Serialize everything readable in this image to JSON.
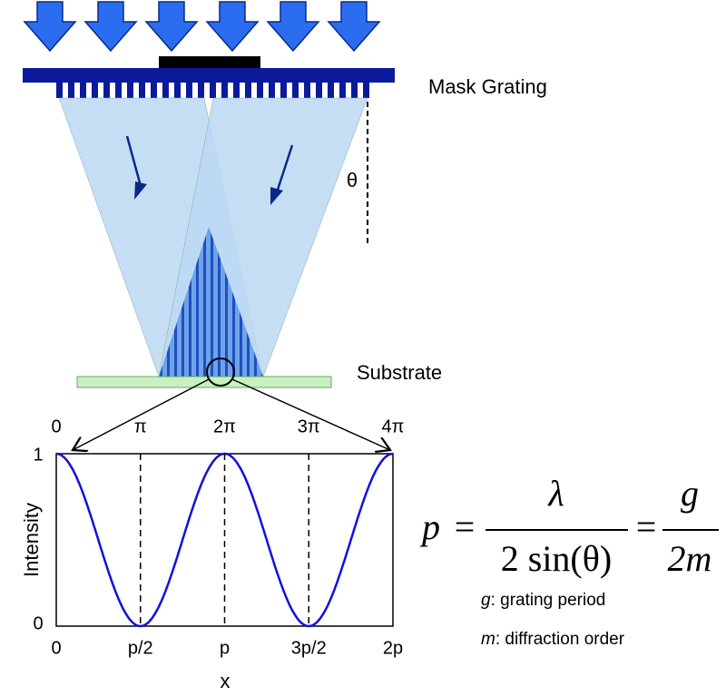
{
  "labels": {
    "mask": "Mask Grating",
    "substrate": "Substrate",
    "angle": "θ"
  },
  "plot": {
    "y_axis_label": "Intensity",
    "x_axis_label": "x",
    "y_tick_labels": [
      "0",
      "1"
    ],
    "phase_labels": [
      "0",
      "π",
      "2π",
      "3π",
      "4π"
    ],
    "x_tick_labels": [
      "0",
      "p/2",
      "p",
      "3p/2",
      "2p"
    ]
  },
  "formula": {
    "lhs": "p",
    "equals": "=",
    "num1": "λ",
    "den1": "2 sin(θ)",
    "num2": "g",
    "den2": "2m"
  },
  "legend": [
    {
      "symbol": "g",
      "text": ": grating period"
    },
    {
      "symbol": "m",
      "text": ": diffraction order"
    }
  ]
}
